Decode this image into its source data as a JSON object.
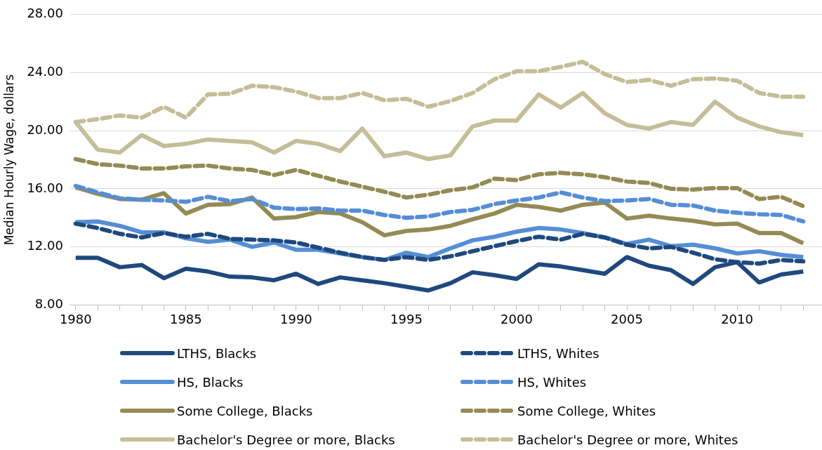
{
  "chart_data": {
    "type": "line",
    "ylabel": "Median Hourly Wage, dollars",
    "x": [
      1980,
      1981,
      1982,
      1983,
      1984,
      1985,
      1986,
      1987,
      1988,
      1989,
      1990,
      1991,
      1992,
      1993,
      1994,
      1995,
      1996,
      1997,
      1998,
      1999,
      2000,
      2001,
      2002,
      2003,
      2004,
      2005,
      2006,
      2007,
      2008,
      2009,
      2010,
      2011,
      2012,
      2013
    ],
    "xlim": [
      1979.75,
      2013.85
    ],
    "xticks": [
      1980,
      {
        "value": 1981,
        "label": null
      },
      {
        "value": 1982,
        "label": null
      },
      {
        "value": 1983,
        "label": null
      },
      {
        "value": 1984,
        "label": null
      },
      1985,
      {
        "value": 1986,
        "label": null
      },
      {
        "value": 1987,
        "label": null
      },
      {
        "value": 1988,
        "label": null
      },
      {
        "value": 1989,
        "label": null
      },
      1990,
      {
        "value": 1991,
        "label": null
      },
      {
        "value": 1992,
        "label": null
      },
      {
        "value": 1993,
        "label": null
      },
      {
        "value": 1994,
        "label": null
      },
      1995,
      {
        "value": 1996,
        "label": null
      },
      {
        "value": 1997,
        "label": null
      },
      {
        "value": 1998,
        "label": null
      },
      {
        "value": 1999,
        "label": null
      },
      2000,
      {
        "value": 2001,
        "label": null
      },
      {
        "value": 2002,
        "label": null
      },
      {
        "value": 2003,
        "label": null
      },
      {
        "value": 2004,
        "label": null
      },
      2005,
      {
        "value": 2006,
        "label": null
      },
      {
        "value": 2007,
        "label": null
      },
      {
        "value": 2008,
        "label": null
      },
      {
        "value": 2009,
        "label": null
      },
      2010,
      {
        "value": 2011,
        "label": null
      },
      {
        "value": 2012,
        "label": null
      },
      {
        "value": 2013,
        "label": null
      }
    ],
    "ylim": [
      8,
      28
    ],
    "yticks": [
      {
        "value": 8,
        "label": "8.00"
      },
      {
        "value": 12,
        "label": "12.00"
      },
      {
        "value": 16,
        "label": "16.00"
      },
      {
        "value": 20,
        "label": "20.00"
      },
      {
        "value": 24,
        "label": "24.00"
      },
      {
        "value": 28,
        "label": "28.00"
      }
    ],
    "grid": "y",
    "legend": "bottom",
    "marker": "none",
    "series": [
      {
        "name": "LTHS, Blacks",
        "color": "#1f497d",
        "line_style": "solid",
        "values": [
          11.25,
          11.25,
          10.6,
          10.75,
          9.85,
          10.5,
          10.3,
          9.95,
          9.9,
          9.7,
          10.15,
          9.45,
          9.9,
          9.7,
          9.5,
          9.25,
          9.0,
          9.5,
          10.25,
          10.05,
          9.8,
          10.8,
          10.65,
          10.4,
          10.15,
          11.3,
          10.7,
          10.4,
          9.45,
          10.6,
          10.95,
          9.55,
          10.1,
          10.3
        ]
      },
      {
        "name": "LTHS, Whites",
        "color": "#1f497d",
        "line_style": "dashed",
        "values": [
          13.6,
          13.3,
          12.9,
          12.65,
          12.95,
          12.7,
          12.9,
          12.55,
          12.5,
          12.45,
          12.3,
          11.95,
          11.6,
          11.3,
          11.1,
          11.3,
          11.1,
          11.35,
          11.7,
          12.05,
          12.4,
          12.7,
          12.5,
          12.9,
          12.65,
          12.15,
          11.9,
          12.0,
          11.6,
          11.15,
          10.95,
          10.85,
          11.1,
          11.0
        ]
      },
      {
        "name": "HS, Blacks",
        "color": "#558ed5",
        "line_style": "solid",
        "values": [
          13.7,
          13.75,
          13.45,
          13.0,
          13.0,
          12.6,
          12.35,
          12.5,
          12.0,
          12.3,
          11.8,
          11.8,
          11.55,
          11.3,
          11.1,
          11.6,
          11.3,
          11.9,
          12.45,
          12.7,
          13.05,
          13.3,
          13.2,
          12.95,
          12.65,
          12.2,
          12.5,
          12.05,
          12.15,
          11.9,
          11.55,
          11.7,
          11.45,
          11.3
        ]
      },
      {
        "name": "HS, Whites",
        "color": "#558ed5",
        "line_style": "dashed",
        "values": [
          16.2,
          15.75,
          15.35,
          15.25,
          15.2,
          15.1,
          15.45,
          15.15,
          15.3,
          14.7,
          14.6,
          14.65,
          14.5,
          14.5,
          14.2,
          14.0,
          14.1,
          14.4,
          14.55,
          14.95,
          15.2,
          15.4,
          15.75,
          15.4,
          15.15,
          15.2,
          15.3,
          14.9,
          14.85,
          14.5,
          14.35,
          14.25,
          14.2,
          13.75
        ]
      },
      {
        "name": "Some College, Blacks",
        "color": "#948a54",
        "line_style": "solid",
        "values": [
          16.1,
          15.65,
          15.3,
          15.25,
          15.7,
          14.3,
          14.9,
          14.95,
          15.4,
          13.95,
          14.05,
          14.4,
          14.3,
          13.7,
          12.8,
          13.1,
          13.2,
          13.45,
          13.9,
          14.3,
          14.9,
          14.75,
          14.5,
          14.9,
          15.05,
          13.95,
          14.15,
          13.95,
          13.8,
          13.55,
          13.6,
          12.95,
          12.95,
          12.25
        ]
      },
      {
        "name": "Some College, Whites",
        "color": "#948a54",
        "line_style": "dashed",
        "values": [
          18.05,
          17.7,
          17.6,
          17.4,
          17.4,
          17.55,
          17.6,
          17.4,
          17.3,
          16.95,
          17.3,
          16.9,
          16.5,
          16.15,
          15.8,
          15.4,
          15.6,
          15.9,
          16.1,
          16.7,
          16.6,
          17.0,
          17.1,
          17.0,
          16.8,
          16.5,
          16.4,
          16.0,
          15.95,
          16.05,
          16.05,
          15.3,
          15.45,
          14.8
        ]
      },
      {
        "name": "Bachelor's Degree or more, Blacks",
        "color": "#c4bd97",
        "line_style": "solid",
        "values": [
          20.6,
          18.7,
          18.5,
          19.7,
          18.95,
          19.1,
          19.4,
          19.3,
          19.2,
          18.5,
          19.3,
          19.1,
          18.6,
          20.15,
          18.25,
          18.5,
          18.05,
          18.3,
          20.3,
          20.7,
          20.7,
          22.5,
          21.6,
          22.6,
          21.2,
          20.4,
          20.15,
          20.6,
          20.4,
          22.0,
          20.9,
          20.3,
          19.9,
          19.7
        ]
      },
      {
        "name": "Bachelor's Degree or more, Whites",
        "color": "#c4bd97",
        "line_style": "dashed",
        "values": [
          20.6,
          20.8,
          21.05,
          20.9,
          21.65,
          20.9,
          22.5,
          22.55,
          23.1,
          23.0,
          22.7,
          22.25,
          22.25,
          22.6,
          22.1,
          22.2,
          21.65,
          22.05,
          22.6,
          23.55,
          24.1,
          24.1,
          24.4,
          24.75,
          23.9,
          23.35,
          23.5,
          23.1,
          23.55,
          23.6,
          23.45,
          22.6,
          22.35,
          22.35
        ]
      }
    ]
  }
}
